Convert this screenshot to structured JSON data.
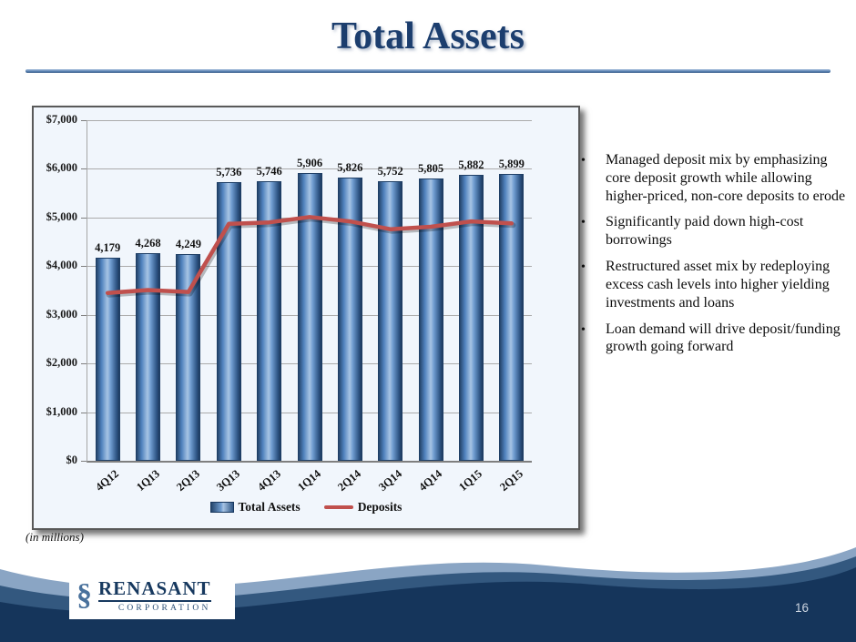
{
  "slide": {
    "title": "Total Assets",
    "footnote": "(in millions)",
    "page_number": "16"
  },
  "logo": {
    "mark": "§",
    "name": "RENASANT",
    "subtitle": "CORPORATION"
  },
  "bullets": [
    "Managed deposit mix by emphasizing core deposit growth while allowing higher-priced, non-core deposits to erode",
    "Significantly paid down high-cost borrowings",
    "Restructured asset mix by redeploying excess cash levels into higher yielding investments and loans",
    "Loan demand will drive deposit/funding growth going forward"
  ],
  "chart_data": {
    "type": "bar",
    "title": "Total Assets",
    "categories": [
      "4Q12",
      "1Q13",
      "2Q13",
      "3Q13",
      "4Q13",
      "1Q14",
      "2Q14",
      "3Q14",
      "4Q14",
      "1Q15",
      "2Q15"
    ],
    "series": [
      {
        "name": "Total Assets",
        "type": "bar",
        "color": "#4F81BD",
        "values": [
          4179,
          4268,
          4249,
          5736,
          5746,
          5906,
          5826,
          5752,
          5805,
          5882,
          5899
        ]
      },
      {
        "name": "Deposits",
        "type": "line",
        "color": "#C0504D",
        "values": [
          3450,
          3510,
          3470,
          4870,
          4900,
          5010,
          4920,
          4760,
          4810,
          4920,
          4880
        ]
      }
    ],
    "ylim": [
      0,
      7000
    ],
    "y_ticks": [
      "$0",
      "$1,000",
      "$2,000",
      "$3,000",
      "$4,000",
      "$5,000",
      "$6,000",
      "$7,000"
    ],
    "grid": true,
    "legend_position": "bottom",
    "units": "in millions"
  },
  "colors": {
    "title": "#1C3E6E",
    "bar_fill": "#4F81BD",
    "bar_edge": "#17375E",
    "line": "#C0504D",
    "chart_bg": "#F1F6FC",
    "wave_navy": "#15355B",
    "wave_mid": "#33587F",
    "wave_light": "#8AA5C4"
  }
}
